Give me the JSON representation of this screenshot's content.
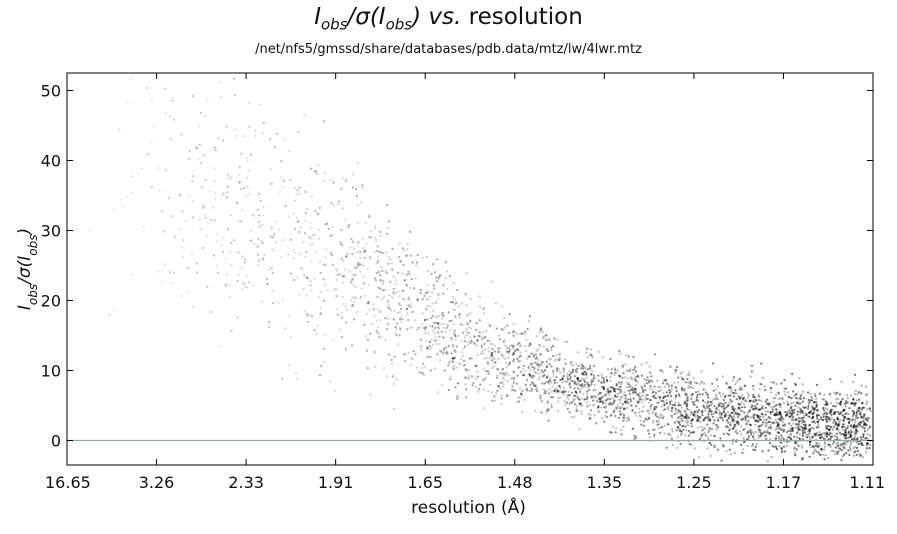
{
  "chart_data": {
    "type": "scatter",
    "title": {
      "prefix": "I",
      "sub1": "obs",
      "mid": "/σ(I",
      "sub2": "obs",
      "suffix": ")",
      "vs": "vs.",
      "tail": "resolution"
    },
    "subtitle": "/net/nfs5/gmssd/share/databases/pdb.data/mtz/lw/4lwr.mtz",
    "xlabel": "resolution (Å)",
    "ylabel": {
      "prefix": "I",
      "sub1": "obs",
      "mid": "/σ(I",
      "sub2": "obs",
      "suffix": ")"
    },
    "x_tick_labels": [
      "16.65",
      "3.26",
      "2.33",
      "1.91",
      "1.65",
      "1.48",
      "1.35",
      "1.25",
      "1.17",
      "1.11"
    ],
    "ylim": [
      -3.5,
      52.5
    ],
    "y_ticks": [
      0,
      10,
      20,
      30,
      40,
      50
    ],
    "x_axis": "resolution binned by tick label; points plotted by reciprocal-space position",
    "grid": false,
    "reference_line": {
      "y": 0,
      "color": "#9aa8a8"
    },
    "point_color": "#000000",
    "trend_by_resolution": [
      {
        "resolution": "3.26",
        "mean_i_over_sigma": 38
      },
      {
        "resolution": "2.33",
        "mean_i_over_sigma": 31
      },
      {
        "resolution": "1.91",
        "mean_i_over_sigma": 25
      },
      {
        "resolution": "1.65",
        "mean_i_over_sigma": 17
      },
      {
        "resolution": "1.48",
        "mean_i_over_sigma": 11
      },
      {
        "resolution": "1.35",
        "mean_i_over_sigma": 7
      },
      {
        "resolution": "1.25",
        "mean_i_over_sigma": 4.5
      },
      {
        "resolution": "1.17",
        "mean_i_over_sigma": 3
      },
      {
        "resolution": "1.11",
        "mean_i_over_sigma": 2
      }
    ]
  }
}
